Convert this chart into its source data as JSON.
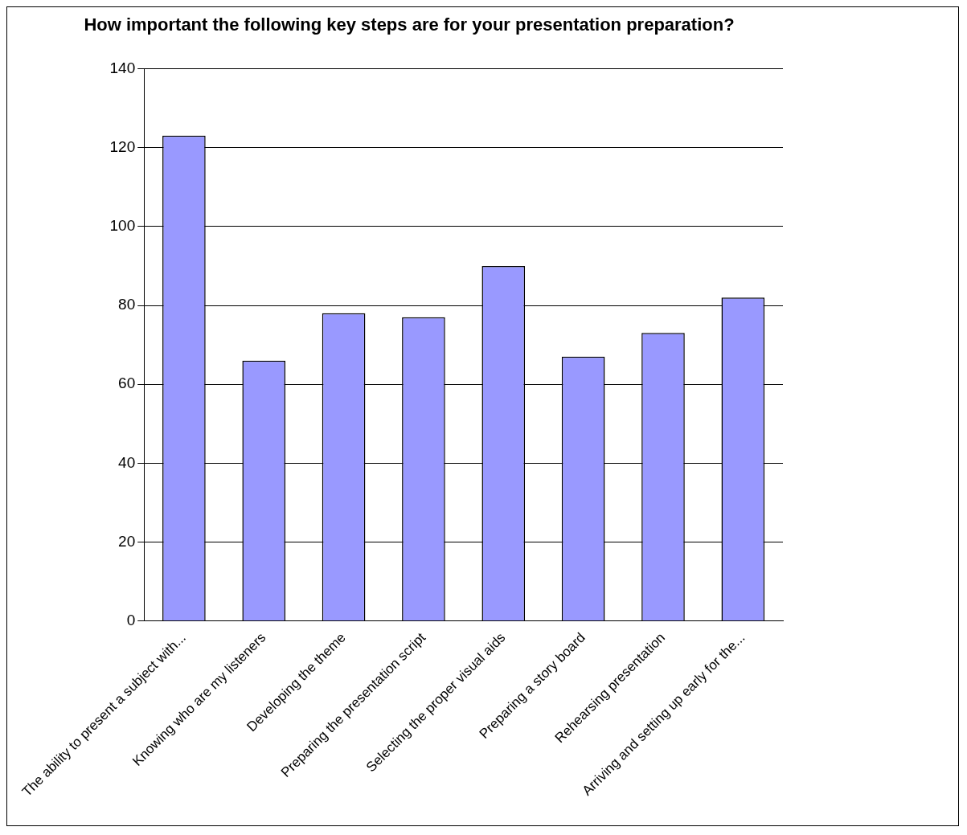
{
  "chart_data": {
    "type": "bar",
    "title": "How important the following key steps are for your presentation preparation?",
    "categories": [
      "The ability to present a subject with...",
      "Knowing who are my listeners",
      "Developing the theme",
      "Preparing the presentation script",
      "Selecting the proper visual aids",
      "Preparing a story board",
      "Rehearsing presentation",
      "Arriving and setting up early for the..."
    ],
    "values": [
      123,
      66,
      78,
      77,
      90,
      67,
      73,
      82
    ],
    "color": "#9999ff",
    "ylim": [
      0,
      140
    ],
    "yticks": [
      0,
      20,
      40,
      60,
      80,
      100,
      120,
      140
    ],
    "grid": "y"
  }
}
